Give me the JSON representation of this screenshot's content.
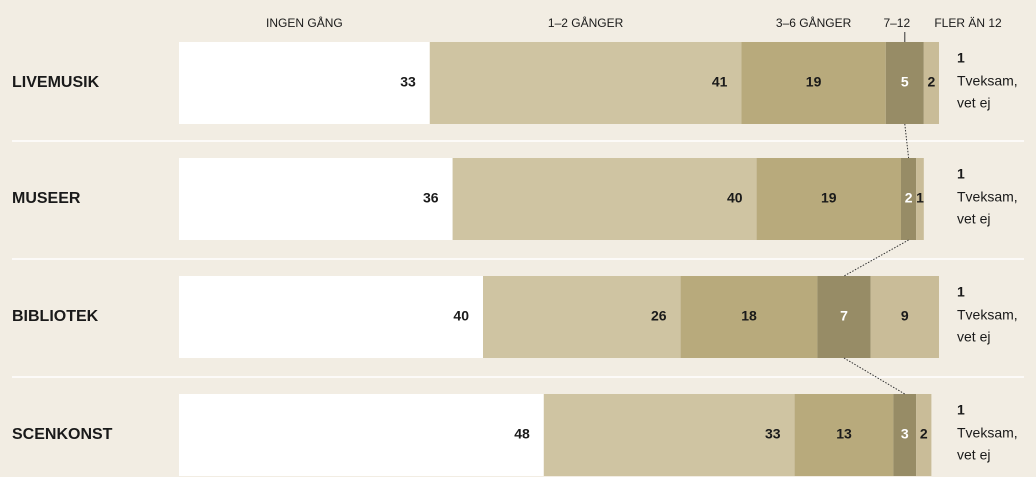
{
  "chart_data": {
    "type": "stacked-bar-horizontal",
    "categories": [
      "LIVEMUSIK",
      "MUSEER",
      "BIBLIOTEK",
      "SCENKONST"
    ],
    "series": [
      {
        "name": "INGEN GÅNG",
        "color": "#ffffff",
        "values": [
          33,
          36,
          40,
          48
        ]
      },
      {
        "name": "1–2 GÅNGER",
        "color": "#cfc4a2",
        "values": [
          41,
          40,
          26,
          33
        ]
      },
      {
        "name": "3–6 GÅNGER",
        "color": "#b8aa7c",
        "values": [
          19,
          19,
          18,
          13
        ]
      },
      {
        "name": "7–12",
        "color": "#978c66",
        "values": [
          5,
          2,
          7,
          3
        ]
      },
      {
        "name": "FLER ÄN 12",
        "color": "#c9bc98",
        "values": [
          2,
          1,
          9,
          2
        ]
      }
    ],
    "unsure": {
      "values": [
        1,
        1,
        1,
        1
      ],
      "label_lines": [
        "Tveksam,",
        "vet ej"
      ]
    },
    "xlim": [
      0,
      100
    ]
  }
}
